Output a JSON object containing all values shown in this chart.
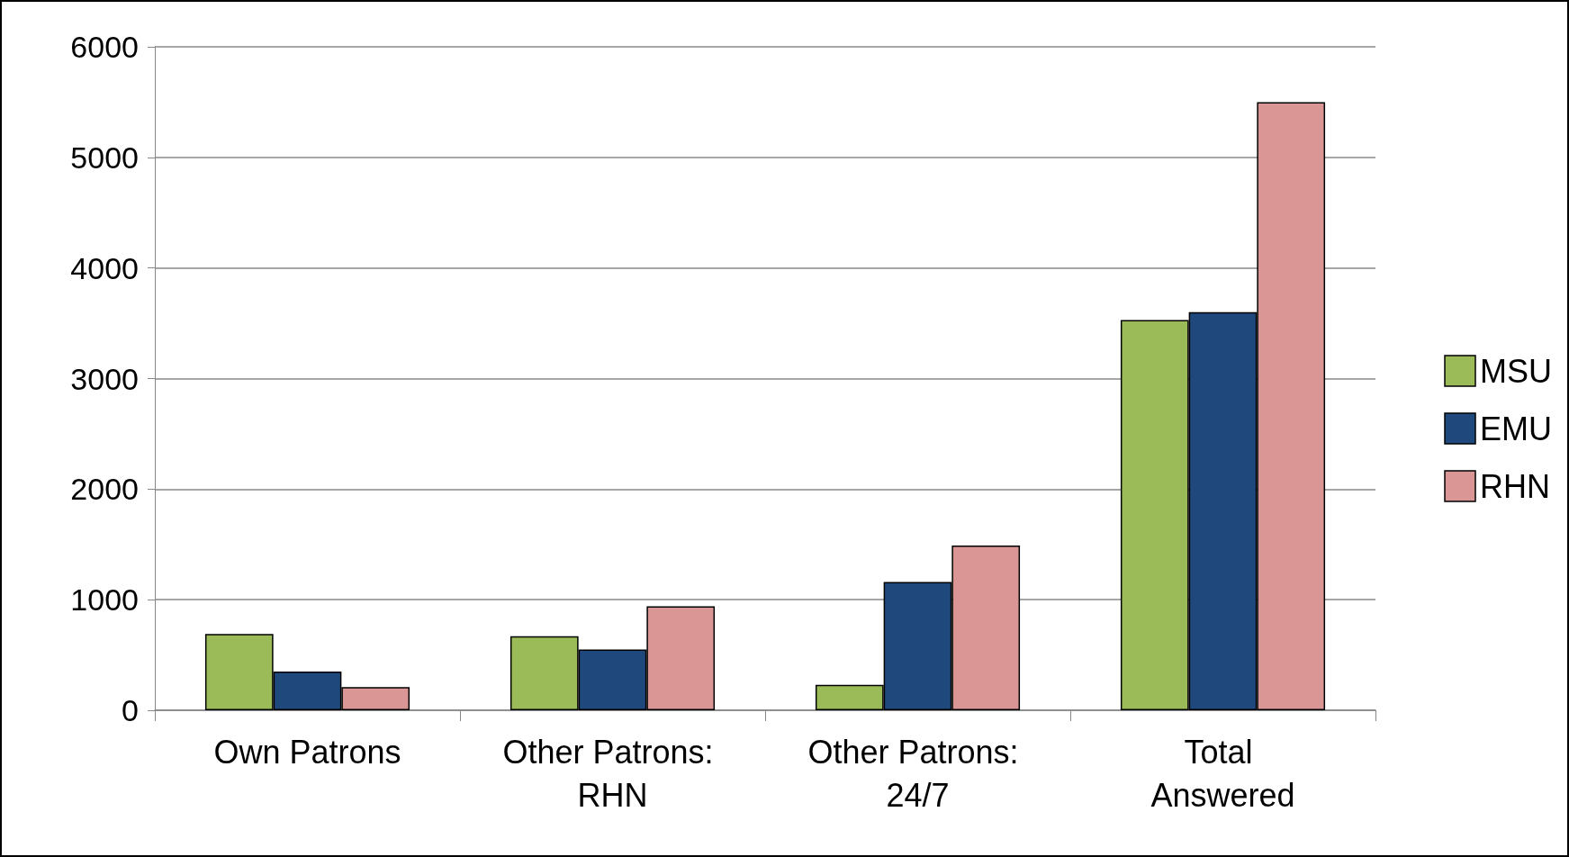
{
  "chart_data": {
    "type": "bar",
    "categories": [
      "Own Patrons",
      "Other Patrons: RHN",
      "Other Patrons: 24/7",
      "Total Answered"
    ],
    "series": [
      {
        "name": "MSU",
        "color": "#9bbb59",
        "values": [
          690,
          670,
          230,
          3530
        ]
      },
      {
        "name": "EMU",
        "color": "#1f497d",
        "values": [
          350,
          550,
          1160,
          3600
        ]
      },
      {
        "name": "RHN",
        "color": "#d99694",
        "values": [
          210,
          940,
          1490,
          5500
        ]
      }
    ],
    "ylim": [
      0,
      6000
    ],
    "yticks": [
      0,
      1000,
      2000,
      3000,
      4000,
      5000,
      6000
    ],
    "grid": "y",
    "legend": "right"
  }
}
